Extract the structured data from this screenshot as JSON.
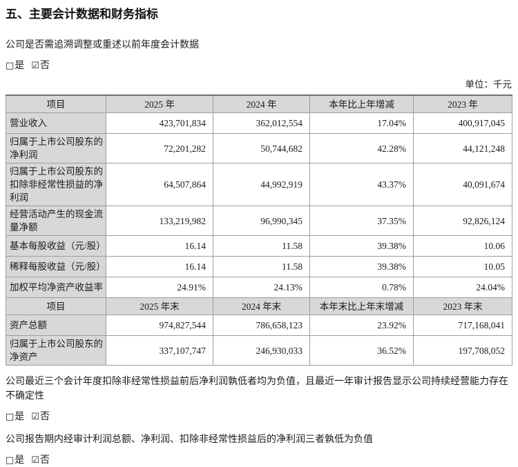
{
  "page": {
    "title": "五、主要会计数据和财务指标",
    "restatement_question": "公司是否需追溯调整或重述以前年度会计数据",
    "unit_label": "单位：千元"
  },
  "checkbox": {
    "unchecked_glyph": "□",
    "checked_glyph": "☑",
    "yes_label": "是",
    "no_label": "否"
  },
  "table": {
    "sections": [
      {
        "header": [
          "项目",
          "2025 年",
          "2024 年",
          "本年比上年增减",
          "2023 年"
        ],
        "rows": [
          [
            "营业收入",
            "423,701,834",
            "362,012,554",
            "17.04%",
            "400,917,045"
          ],
          [
            "归属于上市公司股东的净利润",
            "72,201,282",
            "50,744,682",
            "42.28%",
            "44,121,248"
          ],
          [
            "归属于上市公司股东的扣除非经常性损益的净利润",
            "64,507,864",
            "44,992,919",
            "43.37%",
            "40,091,674"
          ],
          [
            "经营活动产生的现金流量净额",
            "133,219,982",
            "96,990,345",
            "37.35%",
            "92,826,124"
          ],
          [
            "基本每股收益（元/股）",
            "16.14",
            "11.58",
            "39.38%",
            "10.06"
          ],
          [
            "稀释每股收益（元/股）",
            "16.14",
            "11.58",
            "39.38%",
            "10.05"
          ],
          [
            "加权平均净资产收益率",
            "24.91%",
            "24.13%",
            "0.78%",
            "24.04%"
          ]
        ]
      },
      {
        "header": [
          "项目",
          "2025 年末",
          "2024 年末",
          "本年末比上年末增减",
          "2023 年末"
        ],
        "rows": [
          [
            "资产总额",
            "974,827,544",
            "786,658,123",
            "23.92%",
            "717,168,041"
          ],
          [
            "归属于上市公司股东的净资产",
            "337,107,747",
            "246,930,033",
            "36.52%",
            "197,708,052"
          ]
        ]
      }
    ]
  },
  "statements": {
    "going_concern": "公司最近三个会计年度扣除非经常性损益前后净利润孰低者均为负值，且最近一年审计报告显示公司持续经营能力存在不确定性",
    "audited_profit": "公司报告期内经审计利润总额、净利润、扣除非经常性损益后的净利润三者孰低为负值"
  },
  "colors": {
    "header_bg": "#d8d8d8",
    "border": "#9d9d9d",
    "outer_top_border": "#6f6f6f",
    "text": "#1b1b1b"
  }
}
